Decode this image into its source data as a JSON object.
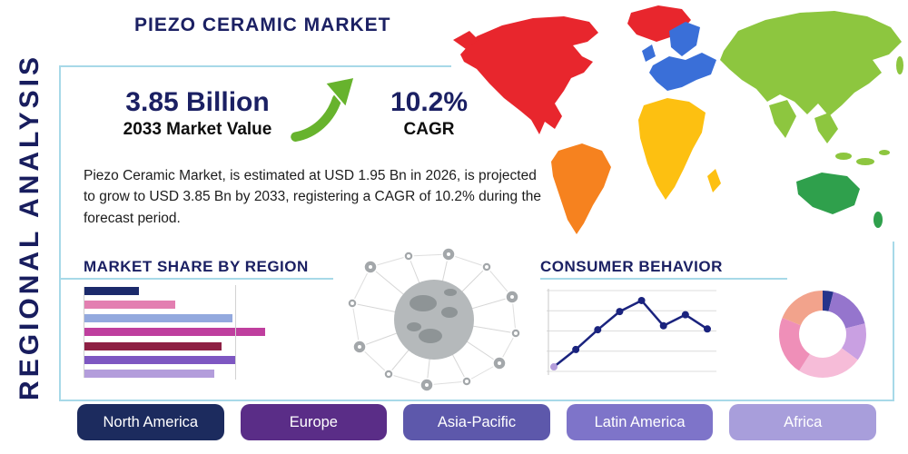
{
  "page": {
    "title": "PIEZO CERAMIC MARKET",
    "side_label": "REGIONAL ANALYSIS",
    "panel_border_color": "#a7d9e8",
    "navy": "#1b2063"
  },
  "stats": {
    "market_value": "3.85 Billion",
    "market_value_caption": "2033 Market Value",
    "cagr_value": "10.2%",
    "cagr_caption": "CAGR",
    "growth_arrow_color": "#67b32d"
  },
  "description": "Piezo Ceramic Market, is estimated at USD 1.95 Bn in 2026, is projected to grow to USD 3.85 Bn by 2033, registering a CAGR of 10.2% during the forecast period.",
  "sections": {
    "market_share_title": "MARKET SHARE BY REGION",
    "consumer_behavior_title": "CONSUMER BEHAVIOR"
  },
  "regions": [
    {
      "label": "North America",
      "color": "#1c2b5e"
    },
    {
      "label": "Europe",
      "color": "#5a2d87"
    },
    {
      "label": "Asia-Pacific",
      "color": "#5d58ab"
    },
    {
      "label": "Latin America",
      "color": "#7e74c9"
    },
    {
      "label": "Africa",
      "color": "#a89edb"
    }
  ],
  "map": {
    "regions": [
      {
        "name": "north-america",
        "color": "#e8262d"
      },
      {
        "name": "greenland",
        "color": "#e8262d"
      },
      {
        "name": "south-america",
        "color": "#f6821f"
      },
      {
        "name": "europe",
        "color": "#3a6fd8"
      },
      {
        "name": "africa",
        "color": "#fdc011"
      },
      {
        "name": "asia",
        "color": "#8dc63f"
      },
      {
        "name": "australia",
        "color": "#2fa04c"
      }
    ]
  },
  "chart_data": [
    {
      "type": "bar",
      "title": "MARKET SHARE BY REGION",
      "orientation": "horizontal",
      "values": [
        30,
        50,
        82,
        100,
        76,
        84,
        72
      ],
      "value_unit": "percent of longest bar (no axis labels visible)",
      "colors": [
        "#1b2a6b",
        "#e37fb1",
        "#93a9de",
        "#bf3f9e",
        "#8e2044",
        "#7e57c2",
        "#b39ddb"
      ],
      "grid": true,
      "categories": [
        "",
        "",
        "",
        "",
        "",
        "",
        ""
      ]
    },
    {
      "type": "line",
      "title": "CONSUMER BEHAVIOR",
      "x": [
        1,
        2,
        3,
        4,
        5,
        6,
        7,
        8
      ],
      "values": [
        8,
        30,
        55,
        78,
        92,
        60,
        74,
        56
      ],
      "value_unit": "percent of plot height (no axis labels visible)",
      "line_color": "#1a237e",
      "first_marker_color": "#b39ddb",
      "grid": true,
      "legend": "none"
    },
    {
      "type": "pie",
      "donut": true,
      "values": [
        4,
        17,
        14,
        24,
        22,
        19
      ],
      "value_unit": "percent (estimated, no labels visible)",
      "colors": [
        "#27348b",
        "#9575cd",
        "#c9a0e2",
        "#f6bcd8",
        "#ef8fb8",
        "#f2a38c"
      ],
      "legend": "none"
    }
  ]
}
